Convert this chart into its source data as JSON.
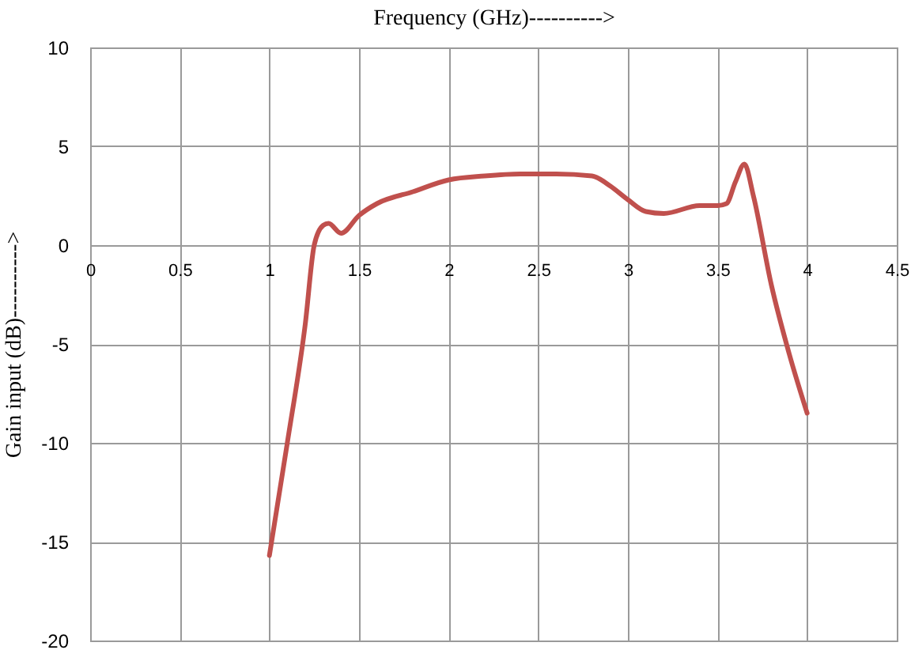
{
  "chart_data": {
    "type": "line",
    "xlabel": "Frequency (GHz)---------->",
    "ylabel": "Gain input (dB)---------->",
    "x": [
      1.0,
      1.1,
      1.2,
      1.25,
      1.3,
      1.33,
      1.4,
      1.5,
      1.6,
      1.8,
      2.0,
      2.2,
      2.4,
      2.6,
      2.8,
      2.9,
      3.0,
      3.1,
      3.2,
      3.4,
      3.5,
      3.55,
      3.6,
      3.65,
      3.7,
      3.8,
      3.9,
      4.0
    ],
    "series": [
      {
        "color": "#c0504d",
        "values": [
          -15.7,
          -10,
          -4,
          0,
          1.0,
          1.1,
          0.6,
          1.5,
          2.1,
          2.7,
          3.3,
          3.5,
          3.6,
          3.6,
          3.5,
          3.0,
          2.3,
          1.7,
          1.6,
          2.0,
          2.0,
          2.1,
          3.2,
          4.1,
          2.5,
          -2,
          -5.5,
          -8.5
        ]
      }
    ],
    "xlim": [
      0,
      4.5
    ],
    "xticks": [
      0,
      0.5,
      1,
      1.5,
      2,
      2.5,
      3,
      3.5,
      4,
      4.5
    ],
    "ylim": [
      -20,
      10
    ],
    "yticks": [
      -20,
      -15,
      -10,
      -5,
      0,
      5,
      10
    ],
    "grid": true,
    "marker": "none",
    "line_style": "solid"
  }
}
